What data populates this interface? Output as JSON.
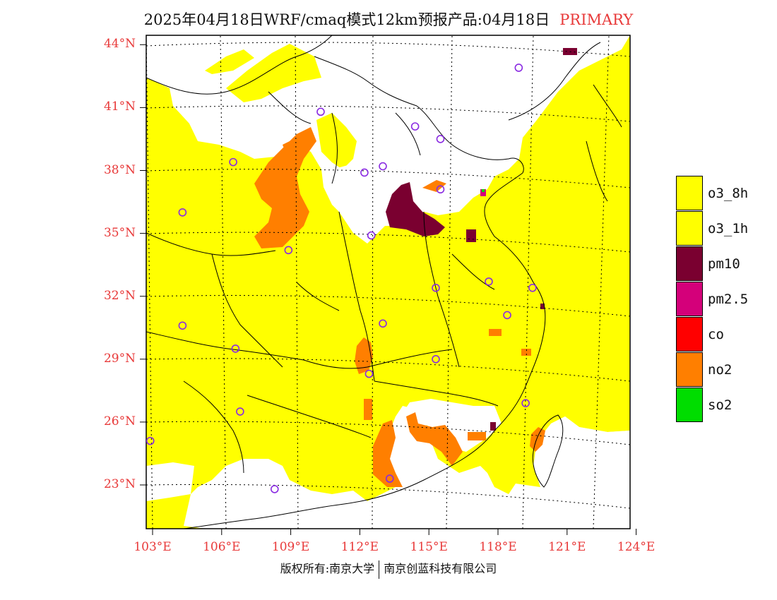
{
  "title": {
    "main": "2025年04月18日WRF/cmaq模式12km预报产品:04月18日",
    "tag": "PRIMARY"
  },
  "axes": {
    "lat_labels": [
      "44°N",
      "41°N",
      "38°N",
      "35°N",
      "32°N",
      "29°N",
      "26°N",
      "23°N"
    ],
    "lat_values": [
      44,
      41,
      38,
      35,
      32,
      29,
      26,
      23
    ],
    "lon_labels": [
      "103°E",
      "106°E",
      "109°E",
      "112°E",
      "115°E",
      "118°E",
      "121°E",
      "124°E"
    ],
    "lon_values": [
      103,
      106,
      109,
      112,
      115,
      118,
      121,
      124
    ]
  },
  "legend": [
    {
      "label": "o3_8h",
      "color": "#ffff00"
    },
    {
      "label": "o3_1h",
      "color": "#ffff00"
    },
    {
      "label": "pm10",
      "color": "#7a0030"
    },
    {
      "label": "pm2.5",
      "color": "#d4007a"
    },
    {
      "label": "co",
      "color": "#ff0000"
    },
    {
      "label": "no2",
      "color": "#ff7f00"
    },
    {
      "label": "so2",
      "color": "#00dd00"
    }
  ],
  "copyright": {
    "left": "版权所有:南京大学",
    "right": "南京创蓝科技有限公司"
  },
  "colors": {
    "tick_label": "#e83a3a",
    "marker": "#8a2be2",
    "boundary": "#000000"
  },
  "markers": [
    {
      "lon": 118.9,
      "lat": 42.9
    },
    {
      "lon": 110.3,
      "lat": 40.8
    },
    {
      "lon": 114.4,
      "lat": 40.1
    },
    {
      "lon": 115.5,
      "lat": 39.5
    },
    {
      "lon": 106.5,
      "lat": 38.4
    },
    {
      "lon": 112.2,
      "lat": 37.9
    },
    {
      "lon": 113.0,
      "lat": 38.2
    },
    {
      "lon": 115.5,
      "lat": 37.1
    },
    {
      "lon": 104.3,
      "lat": 36.0
    },
    {
      "lon": 112.5,
      "lat": 34.9
    },
    {
      "lon": 108.9,
      "lat": 34.2
    },
    {
      "lon": 117.6,
      "lat": 32.7
    },
    {
      "lon": 115.3,
      "lat": 32.4
    },
    {
      "lon": 119.5,
      "lat": 32.4
    },
    {
      "lon": 104.3,
      "lat": 30.6
    },
    {
      "lon": 113.0,
      "lat": 30.7
    },
    {
      "lon": 118.4,
      "lat": 31.1
    },
    {
      "lon": 106.6,
      "lat": 29.5
    },
    {
      "lon": 115.3,
      "lat": 29.0
    },
    {
      "lon": 112.4,
      "lat": 28.3
    },
    {
      "lon": 106.8,
      "lat": 26.5
    },
    {
      "lon": 119.2,
      "lat": 26.9
    },
    {
      "lon": 102.9,
      "lat": 25.1
    },
    {
      "lon": 113.3,
      "lat": 23.3
    },
    {
      "lon": 108.3,
      "lat": 22.8
    }
  ]
}
